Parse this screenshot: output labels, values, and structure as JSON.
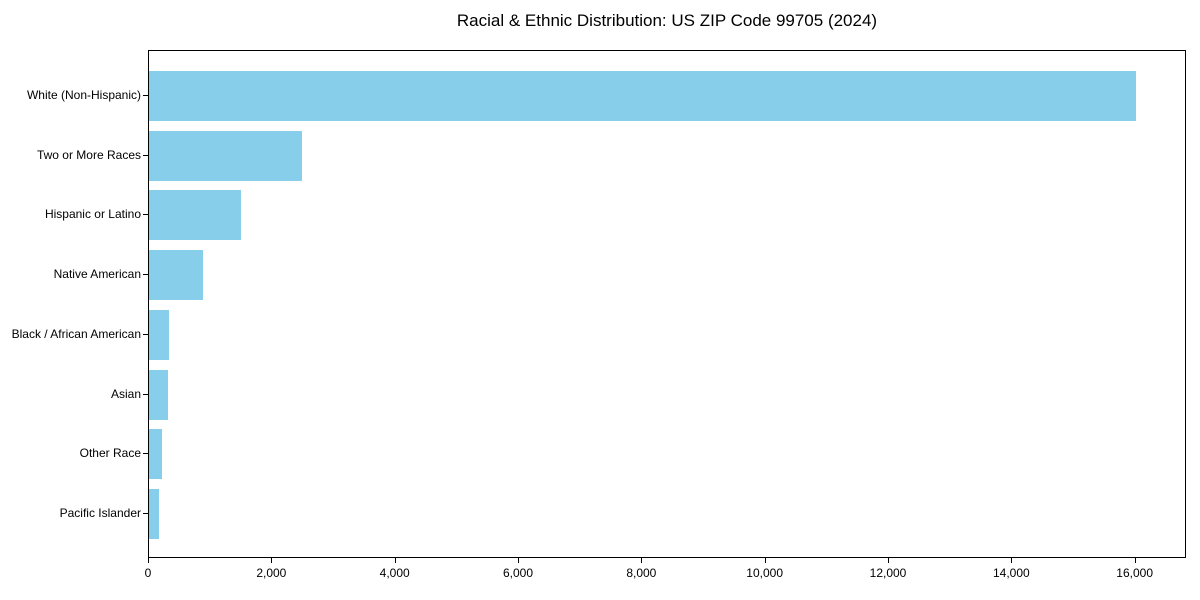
{
  "chart_data": {
    "type": "bar",
    "orientation": "horizontal",
    "title": "Racial & Ethnic Distribution: US ZIP Code 99705 (2024)",
    "categories": [
      "White (Non-Hispanic)",
      "Two or More Races",
      "Hispanic or Latino",
      "Native American",
      "Black / African American",
      "Asian",
      "Other Race",
      "Pacific Islander"
    ],
    "values": [
      16000,
      2480,
      1490,
      875,
      320,
      310,
      205,
      165
    ],
    "xlabel": "",
    "ylabel": "",
    "xlim": [
      0,
      16800
    ],
    "xticks": [
      0,
      2000,
      4000,
      6000,
      8000,
      10000,
      12000,
      14000,
      16000
    ],
    "xtick_labels": [
      "0",
      "2,000",
      "4,000",
      "6,000",
      "8,000",
      "10,000",
      "12,000",
      "14,000",
      "16,000"
    ],
    "bar_color": "#87CEEB",
    "frame_color": "#000000",
    "grid": false,
    "legend": null,
    "background": "#ffffff"
  }
}
